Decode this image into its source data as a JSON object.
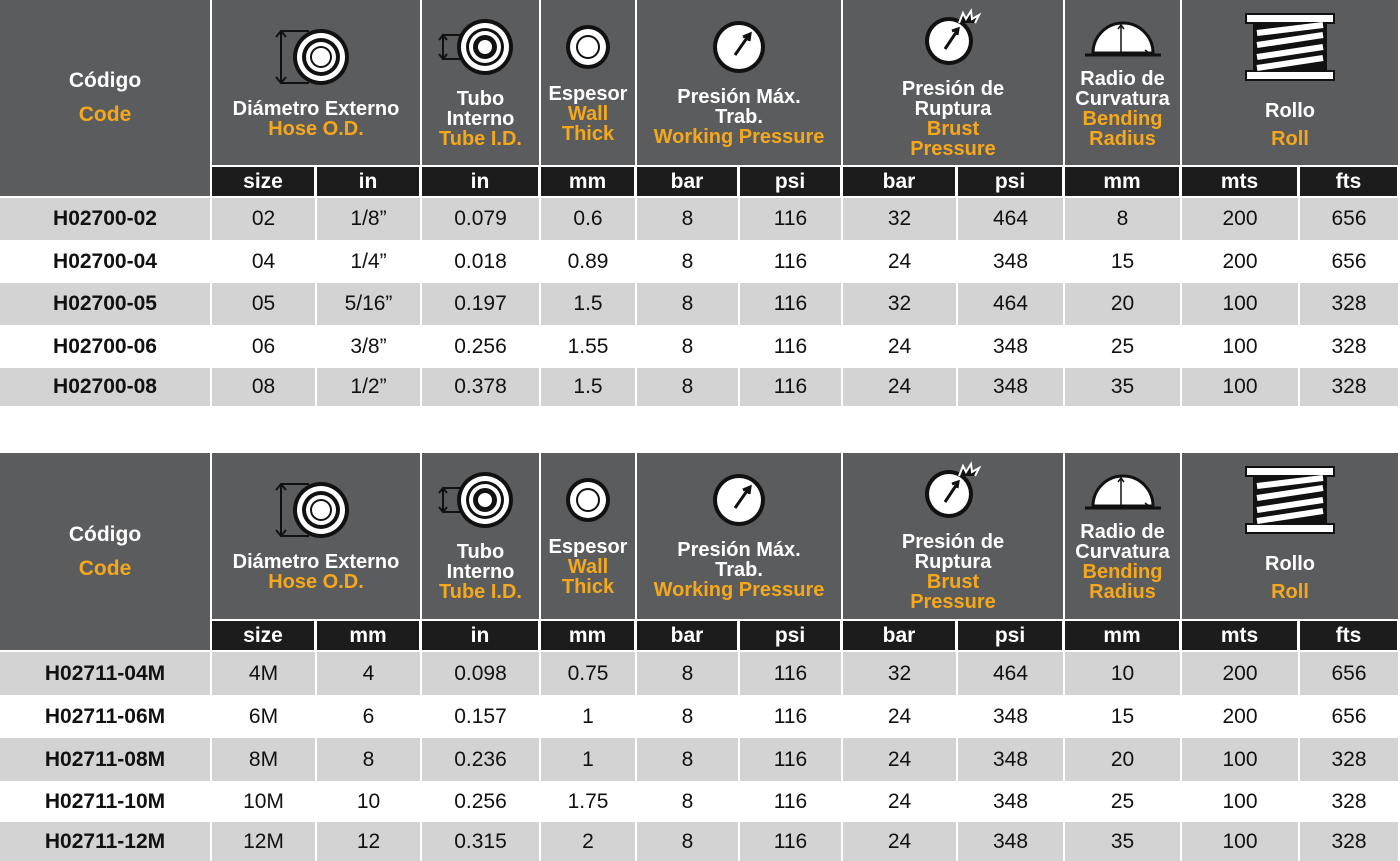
{
  "colors": {
    "header_bg": "#5b5c5e",
    "subheader_bg": "#1c1c1c",
    "accent": "#f6a81c",
    "row_gray": "#d3d3d3"
  },
  "headers": {
    "code": {
      "es": "Código",
      "en": "Code"
    },
    "hose_od": {
      "es": "Diámetro Externo",
      "en": "Hose O.D.",
      "icon": "hose-od-icon"
    },
    "tube_id": {
      "es": "Tubo Interno",
      "en": "Tube I.D.",
      "icon": "tube-id-icon"
    },
    "wall": {
      "es": "Espesor",
      "en": "Wall Thick",
      "icon": "wall-thickness-icon"
    },
    "working": {
      "es": "Presión Máx. Trab.",
      "en": "Working Pressure",
      "icon": "pressure-gauge-icon"
    },
    "burst": {
      "es": "Presión de Ruptura",
      "en": "Brust Pressure",
      "icon": "burst-gauge-icon"
    },
    "bending": {
      "es": "Radio de Curvatura",
      "en": "Bending Radius",
      "icon": "bending-radius-icon"
    },
    "roll": {
      "es": "Rollo",
      "en": "Roll",
      "icon": "roll-icon"
    }
  },
  "tables": [
    {
      "units": [
        "size",
        "in",
        "in",
        "mm",
        "bar",
        "psi",
        "bar",
        "psi",
        "mm",
        "mts",
        "fts"
      ],
      "rows": [
        [
          "H02700-02",
          "02",
          "1/8”",
          "0.079",
          "0.6",
          "8",
          "116",
          "32",
          "464",
          "8",
          "200",
          "656"
        ],
        [
          "H02700-04",
          "04",
          "1/4”",
          "0.018",
          "0.89",
          "8",
          "116",
          "24",
          "348",
          "15",
          "200",
          "656"
        ],
        [
          "H02700-05",
          "05",
          "5/16”",
          "0.197",
          "1.5",
          "8",
          "116",
          "32",
          "464",
          "20",
          "100",
          "328"
        ],
        [
          "H02700-06",
          "06",
          "3/8”",
          "0.256",
          "1.55",
          "8",
          "116",
          "24",
          "348",
          "25",
          "100",
          "328"
        ],
        [
          "H02700-08",
          "08",
          "1/2”",
          "0.378",
          "1.5",
          "8",
          "116",
          "24",
          "348",
          "35",
          "100",
          "328"
        ]
      ]
    },
    {
      "units": [
        "size",
        "mm",
        "in",
        "mm",
        "bar",
        "psi",
        "bar",
        "psi",
        "mm",
        "mts",
        "fts"
      ],
      "rows": [
        [
          "H02711-04M",
          "4M",
          "4",
          "0.098",
          "0.75",
          "8",
          "116",
          "32",
          "464",
          "10",
          "200",
          "656"
        ],
        [
          "H02711-06M",
          "6M",
          "6",
          "0.157",
          "1",
          "8",
          "116",
          "24",
          "348",
          "15",
          "200",
          "656"
        ],
        [
          "H02711-08M",
          "8M",
          "8",
          "0.236",
          "1",
          "8",
          "116",
          "24",
          "348",
          "20",
          "100",
          "328"
        ],
        [
          "H02711-10M",
          "10M",
          "10",
          "0.256",
          "1.75",
          "8",
          "116",
          "24",
          "348",
          "25",
          "100",
          "328"
        ],
        [
          "H02711-12M",
          "12M",
          "12",
          "0.315",
          "2",
          "8",
          "116",
          "24",
          "348",
          "35",
          "100",
          "328"
        ]
      ]
    }
  ]
}
